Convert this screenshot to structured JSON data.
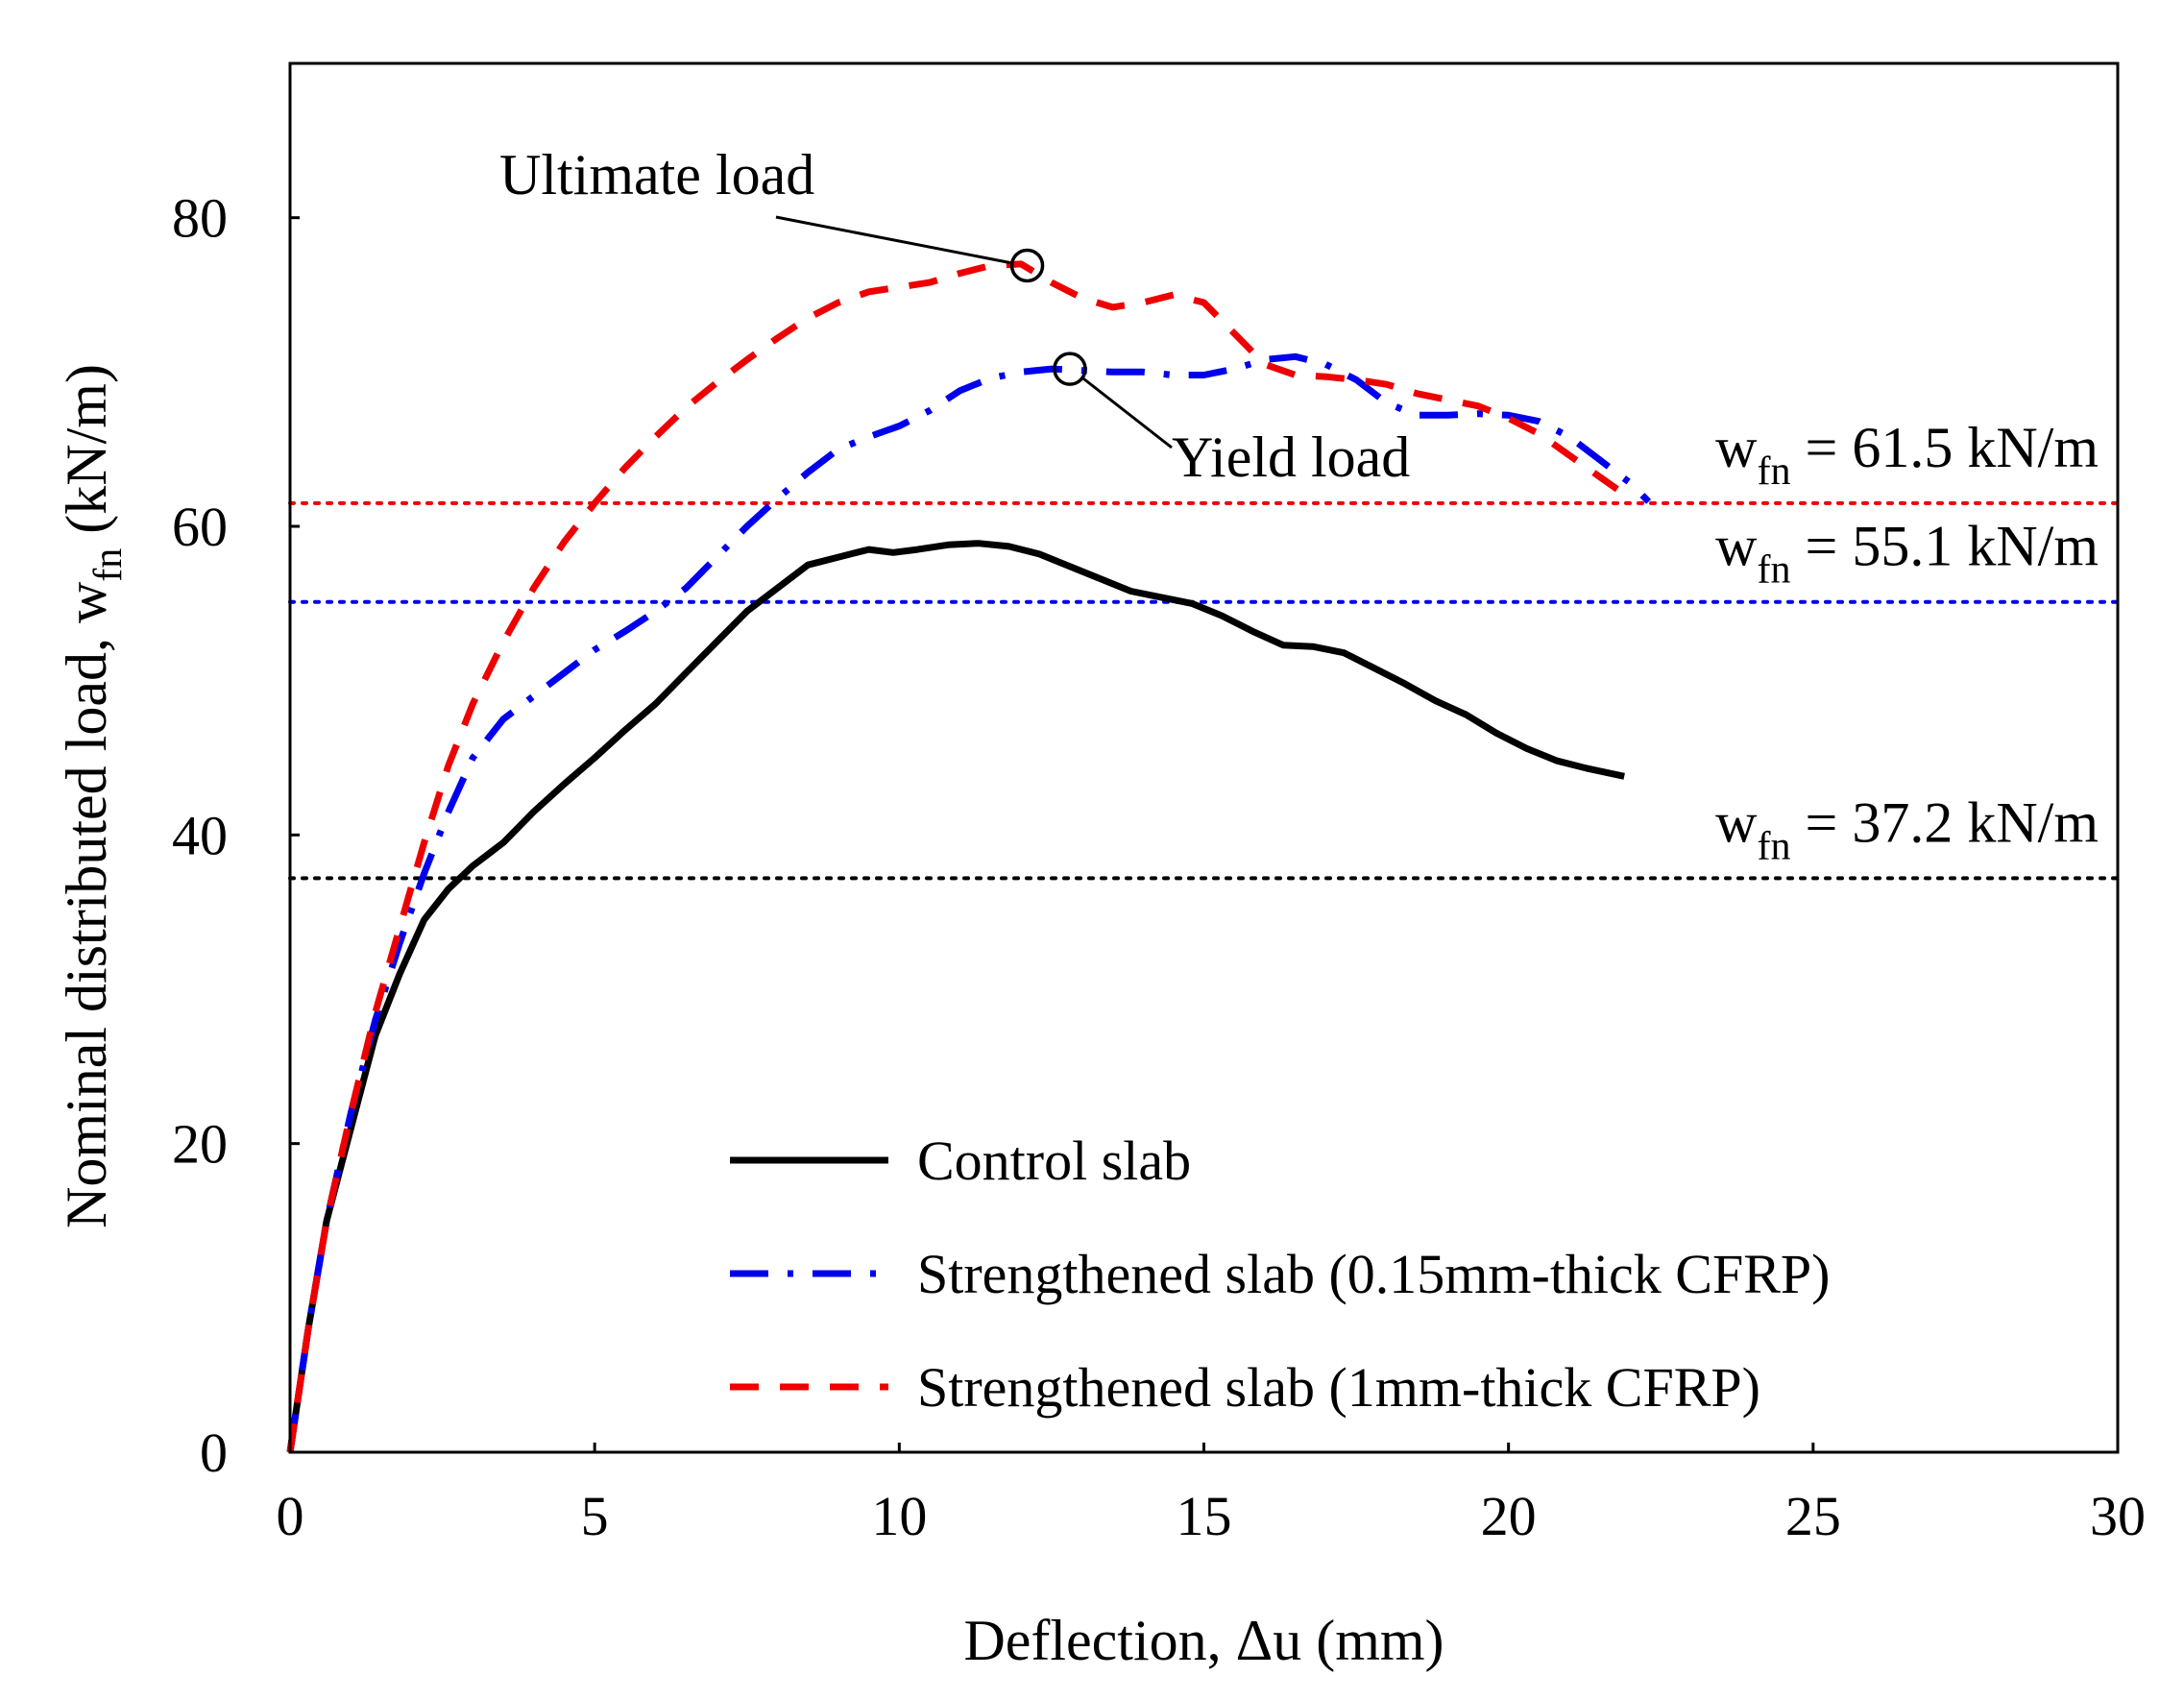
{
  "chart_data": {
    "type": "line",
    "xlabel": "Deflection, Δu (mm)",
    "ylabel_main": "Nominal distributed load, w",
    "ylabel_sub": "fn",
    "ylabel_tail": " (kN/m)",
    "xlim": [
      0,
      30
    ],
    "ylim": [
      0,
      90
    ],
    "xticks": [
      0,
      5,
      10,
      15,
      20,
      25,
      30
    ],
    "yticks": [
      0,
      20,
      40,
      60,
      80
    ],
    "grid": false,
    "legend_position": "bottom-center",
    "series": [
      {
        "name": "Control slab",
        "color": "#000000",
        "dash": "solid",
        "x": [
          0,
          0.3,
          0.6,
          1.0,
          1.4,
          1.8,
          2.2,
          2.6,
          3.0,
          3.5,
          4.0,
          4.5,
          5.0,
          5.5,
          6.0,
          6.5,
          7.0,
          7.5,
          8.0,
          8.5,
          9.0,
          9.5,
          9.9,
          10.3,
          10.8,
          11.3,
          11.8,
          12.3,
          12.8,
          13.3,
          13.8,
          14.3,
          14.8,
          15.3,
          15.8,
          16.3,
          16.8,
          17.3,
          17.8,
          18.3,
          18.8,
          19.3,
          19.8,
          20.3,
          20.8,
          21.3,
          21.9
        ],
        "y": [
          0,
          8,
          15,
          21,
          27,
          31,
          34.5,
          36.5,
          38,
          39.5,
          41.5,
          43.3,
          45,
          46.8,
          48.5,
          50.5,
          52.5,
          54.5,
          56,
          57.5,
          58,
          58.5,
          58.3,
          58.5,
          58.8,
          58.9,
          58.7,
          58.2,
          57.4,
          56.6,
          55.8,
          55.4,
          55,
          54.2,
          53.2,
          52.3,
          52.2,
          51.8,
          50.8,
          49.8,
          48.7,
          47.8,
          46.6,
          45.6,
          44.8,
          44.3,
          43.8
        ]
      },
      {
        "name": "Strengthened slab (0.15mm-thick CFRP)",
        "color": "#0000ee",
        "dash": "dashdot",
        "x": [
          0,
          0.3,
          0.6,
          1.0,
          1.4,
          1.8,
          2.2,
          2.6,
          3.0,
          3.5,
          4.0,
          4.5,
          5.0,
          5.5,
          6.0,
          6.5,
          7.0,
          7.5,
          8.0,
          8.5,
          9.0,
          9.5,
          10.0,
          10.5,
          11.0,
          11.5,
          12.0,
          12.5,
          13.0,
          13.5,
          14.0,
          14.5,
          15.0,
          15.5,
          16.0,
          16.5,
          17.0,
          17.5,
          18.0,
          18.5,
          19.0,
          19.5,
          20.0,
          20.5,
          21.0,
          21.5,
          22.0,
          22.3
        ],
        "y": [
          0,
          8,
          15,
          22,
          28,
          33,
          37.5,
          41.5,
          45,
          47.5,
          49,
          50.5,
          52,
          53.2,
          54.5,
          56,
          58,
          60,
          61.8,
          63.5,
          65,
          65.8,
          66.5,
          67.5,
          68.8,
          69.6,
          70,
          70.2,
          70.1,
          70,
          70,
          69.8,
          69.8,
          70.2,
          70.8,
          71,
          70.5,
          69.5,
          68,
          67.2,
          67.2,
          67.3,
          67.2,
          66.8,
          65.8,
          64.3,
          62.8,
          61.6
        ]
      },
      {
        "name": "Strengthened slab (1mm-thick CFRP)",
        "color": "#ee0000",
        "dash": "dashed",
        "x": [
          0,
          0.3,
          0.6,
          1.0,
          1.4,
          1.8,
          2.2,
          2.6,
          3.0,
          3.5,
          4.0,
          4.5,
          5.0,
          5.5,
          6.0,
          6.5,
          7.0,
          7.5,
          8.0,
          8.5,
          9.0,
          9.5,
          10.0,
          10.5,
          11.0,
          11.5,
          12.0,
          12.5,
          13.0,
          13.5,
          14.0,
          14.5,
          15.0,
          15.5,
          16.0,
          16.5,
          17.0,
          17.5,
          18.0,
          18.5,
          19.0,
          19.5,
          20.0,
          20.5,
          21.0,
          21.5,
          22.0
        ],
        "y": [
          0,
          8,
          15,
          22,
          28.5,
          34,
          39.5,
          44.5,
          48.5,
          52.5,
          56,
          59,
          61.5,
          63.8,
          65.8,
          67.7,
          69.3,
          70.8,
          72.2,
          73.5,
          74.5,
          75.2,
          75.5,
          75.8,
          76.4,
          76.9,
          77,
          75.8,
          74.8,
          74.2,
          74.5,
          75,
          74.5,
          72.5,
          70.5,
          69.8,
          69.7,
          69.5,
          69.2,
          68.6,
          68.2,
          67.8,
          67,
          66,
          64.6,
          63.2,
          61.8
        ]
      }
    ],
    "reference_lines": [
      {
        "y": 61.5,
        "color": "#ee0000",
        "label_main": "w",
        "label_sub": "fn",
        "label_tail": " = 61.5 kN/m"
      },
      {
        "y": 55.1,
        "color": "#0000ee",
        "label_main": "w",
        "label_sub": "fn",
        "label_tail": " = 55.1 kN/m"
      },
      {
        "y": 37.2,
        "color": "#000000",
        "label_main": "w",
        "label_sub": "fn",
        "label_tail": " = 37.2 kN/m"
      }
    ],
    "annotations": [
      {
        "text": "Ultimate load",
        "point": [
          12.1,
          76.9
        ]
      },
      {
        "text": "Yield load",
        "point": [
          12.8,
          70.2
        ]
      }
    ]
  }
}
